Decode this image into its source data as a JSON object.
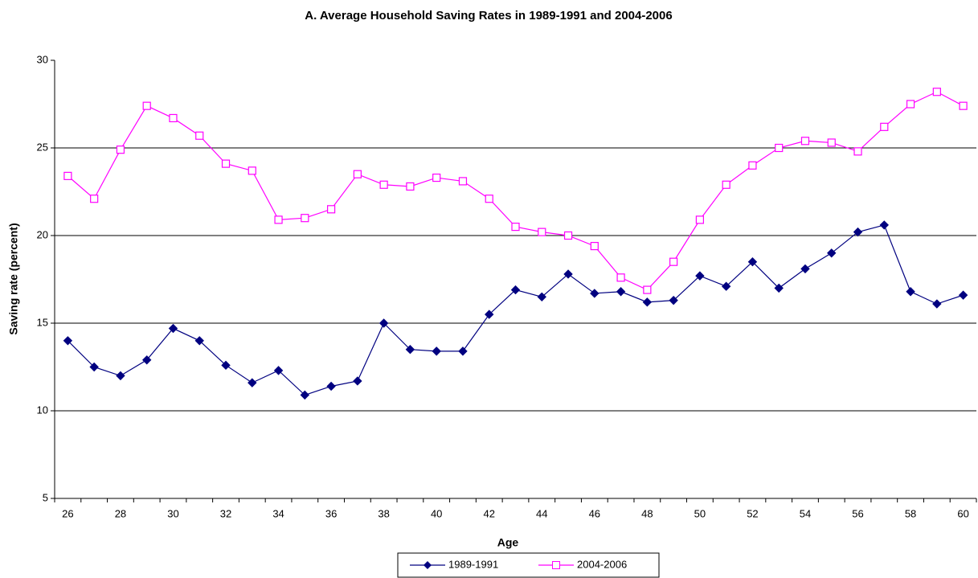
{
  "chart_data": {
    "type": "line",
    "title": "A. Average Household Saving Rates in 1989-1991 and 2004-2006",
    "x_label": "Age",
    "y_label": "Saving rate (percent)",
    "categories": [
      "26",
      null,
      "28",
      null,
      "30",
      null,
      "32",
      null,
      "34",
      null,
      "36",
      null,
      "38",
      null,
      "40",
      null,
      "42",
      null,
      "44",
      null,
      "46",
      null,
      "48",
      null,
      "50",
      null,
      "52",
      null,
      "54",
      null,
      "56",
      null,
      "58",
      null,
      "60"
    ],
    "series": [
      {
        "name": "1989-1991",
        "color": "#000080",
        "marker": "diamond",
        "values": [
          14.0,
          12.5,
          12.0,
          12.9,
          14.7,
          14.0,
          12.6,
          11.6,
          12.3,
          10.9,
          11.4,
          11.7,
          15.0,
          13.5,
          13.4,
          13.4,
          15.5,
          16.9,
          16.5,
          17.8,
          16.7,
          16.8,
          16.2,
          16.3,
          17.7,
          17.1,
          18.5,
          17.0,
          18.1,
          19.0,
          20.2,
          20.6,
          16.8,
          16.1,
          16.6
        ]
      },
      {
        "name": "2004-2006",
        "color": "#ff00ff",
        "marker": "square",
        "values": [
          23.4,
          22.1,
          24.9,
          27.4,
          26.7,
          25.7,
          24.1,
          23.7,
          20.9,
          21.0,
          21.5,
          23.5,
          22.9,
          22.8,
          23.3,
          23.1,
          22.1,
          20.5,
          20.2,
          20.0,
          19.4,
          17.6,
          16.9,
          18.5,
          20.9,
          22.9,
          24.0,
          25.0,
          25.4,
          25.3,
          24.8,
          26.2,
          27.5,
          28.2,
          27.4
        ]
      }
    ],
    "ylim": [
      5,
      30
    ],
    "yticks": [
      5,
      10,
      15,
      20,
      25,
      30
    ],
    "grid": true,
    "legend": "bottom"
  }
}
